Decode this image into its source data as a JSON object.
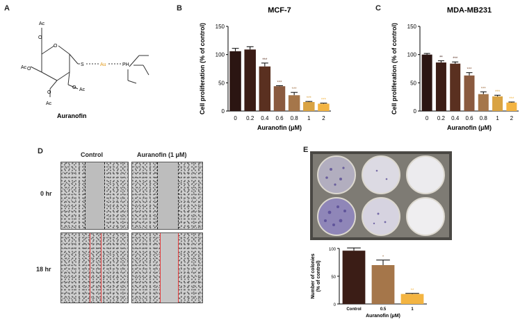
{
  "panels": {
    "A": {
      "label": "A",
      "caption": "Auranofin",
      "substituent": "Ac",
      "sulfur": "S",
      "gold": "Au",
      "phosphorus": "PH"
    },
    "B": {
      "label": "B"
    },
    "C": {
      "label": "C"
    },
    "D": {
      "label": "D",
      "col_headers": [
        "Control",
        "Auranofin (1 μM)"
      ],
      "row_headers": [
        "0 hr",
        "18 hr"
      ]
    },
    "E": {
      "label": "E"
    }
  },
  "colors": {
    "bar": [
      "#2b1512",
      "#3b1d16",
      "#5a3020",
      "#8a5a3f",
      "#a5764a",
      "#d9a343",
      "#f3b442"
    ],
    "colony_bar": [
      "#3b1d16",
      "#a5764a",
      "#f3b442"
    ],
    "gold": "#e39b1c",
    "scratch_line_red": "#e23b3b"
  },
  "chart_data": [
    {
      "id": "B",
      "type": "bar",
      "title": "MCF-7",
      "xlabel": "Auranofin (μM)",
      "ylabel": "Cell proliferation (% of control)",
      "categories": [
        "0",
        "0.2",
        "0.4",
        "0.6",
        "0.8",
        "1",
        "2"
      ],
      "values": [
        106,
        109,
        79,
        44,
        28,
        16,
        13
      ],
      "errors": [
        5,
        5,
        6,
        1,
        5,
        1,
        1
      ],
      "annotations": [
        "",
        "",
        "***",
        "***",
        "***",
        "***",
        "***"
      ],
      "ylim": [
        0,
        150
      ],
      "yticks": [
        "0",
        "50",
        "100",
        "150"
      ]
    },
    {
      "id": "C",
      "type": "bar",
      "title": "MDA-MB231",
      "xlabel": "Auranofin (μM)",
      "ylabel": "Cell proliferation (% of control)",
      "categories": [
        "0",
        "0.2",
        "0.4",
        "0.6",
        "0.8",
        "1",
        "2"
      ],
      "values": [
        100,
        86,
        84,
        63,
        30,
        26,
        15
      ],
      "errors": [
        2,
        3,
        3,
        5,
        4,
        2,
        1
      ],
      "annotations": [
        "",
        "**",
        "***",
        "***",
        "***",
        "***",
        "***"
      ],
      "ylim": [
        0,
        150
      ],
      "yticks": [
        "0",
        "50",
        "100",
        "150"
      ]
    },
    {
      "id": "E",
      "type": "bar",
      "title": "",
      "xlabel": "Auranofin (μM)",
      "ylabel": "Number of colonies (% of control)",
      "ylabel_lines": [
        "Number of colonies",
        "(% of control)"
      ],
      "categories": [
        "Control",
        "0.5",
        "1"
      ],
      "values": [
        96,
        70,
        18
      ],
      "errors": [
        5,
        9,
        1
      ],
      "annotations": [
        "",
        "*",
        "**"
      ],
      "ylim": [
        0,
        100
      ],
      "yticks": [
        "0",
        "50",
        "100"
      ]
    }
  ]
}
